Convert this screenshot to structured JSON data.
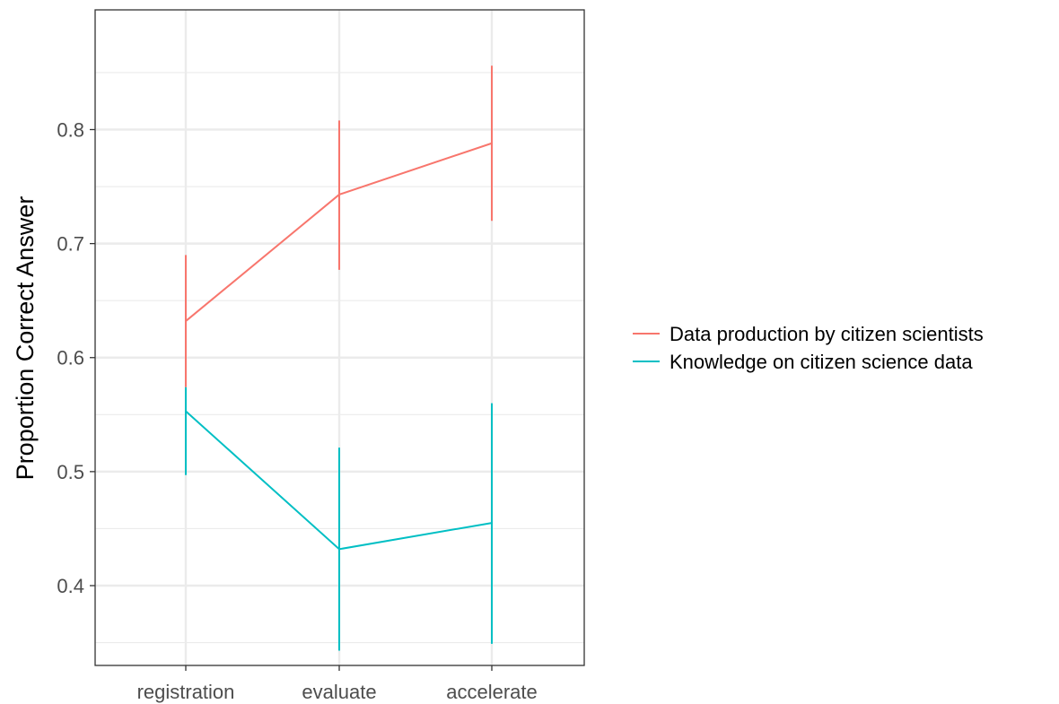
{
  "chart_data": {
    "type": "line",
    "title": "",
    "xlabel": "",
    "ylabel": "Proportion Correct Answer",
    "categories": [
      "registration",
      "evaluate",
      "accelerate"
    ],
    "ylim": [
      0.33,
      0.905
    ],
    "yticks": [
      0.4,
      0.5,
      0.6,
      0.7,
      0.8
    ],
    "ytick_labels": [
      "0.4",
      "0.5",
      "0.6",
      "0.7",
      "0.8"
    ],
    "grid": true,
    "legend_position": "right",
    "error_bars": true,
    "series": [
      {
        "name": "Data production by citizen scientists",
        "color": "#F8766D",
        "values": [
          0.632,
          0.743,
          0.788
        ],
        "lower": [
          0.574,
          0.677,
          0.72
        ],
        "upper": [
          0.69,
          0.808,
          0.856
        ]
      },
      {
        "name": "Knowledge on citizen science data",
        "color": "#00BFC4",
        "values": [
          0.553,
          0.432,
          0.455
        ],
        "lower": [
          0.497,
          0.343,
          0.349
        ],
        "upper": [
          0.574,
          0.521,
          0.56
        ]
      }
    ]
  }
}
